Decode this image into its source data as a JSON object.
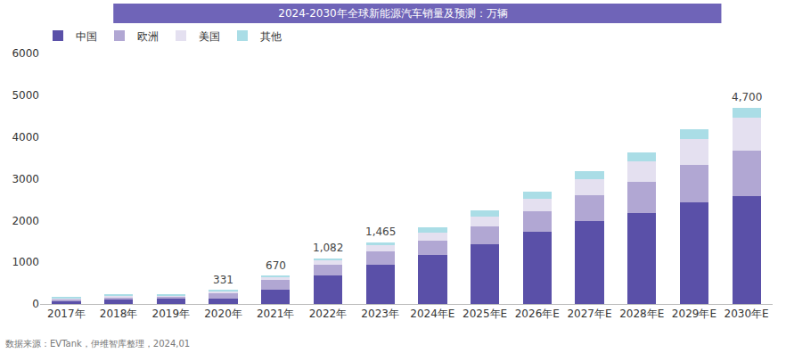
{
  "chart_data": {
    "type": "bar",
    "title": "2024-2030年全球新能源汽车销量及预测：万辆",
    "source": "数据来源：EVTank，伊维智库整理，2024,01",
    "categories": [
      "2017年",
      "2018年",
      "2019年",
      "2020年",
      "2021年",
      "2022年",
      "2023年",
      "2024年E",
      "2025年E",
      "2026年E",
      "2027年E",
      "2028年E",
      "2029年E",
      "2030年E"
    ],
    "series": [
      {
        "name": "中国",
        "color": "#5a50a8",
        "values": [
          78,
          125,
          121,
          137,
          352,
          689,
          950,
          1180,
          1430,
          1730,
          1980,
          2180,
          2440,
          2580
        ]
      },
      {
        "name": "欧洲",
        "color": "#b1a7d3",
        "values": [
          31,
          41,
          56,
          137,
          226,
          260,
          300,
          340,
          420,
          500,
          620,
          750,
          900,
          1100
        ]
      },
      {
        "name": "美国",
        "color": "#e4e0f0",
        "values": [
          20,
          36,
          33,
          33,
          67,
          99,
          150,
          190,
          240,
          300,
          380,
          480,
          620,
          780
        ]
      },
      {
        "name": "其他",
        "color": "#aadde6",
        "values": [
          33,
          12,
          11,
          24,
          25,
          34,
          65,
          120,
          150,
          170,
          200,
          210,
          220,
          240
        ]
      }
    ],
    "totals": [
      null,
      null,
      null,
      331,
      670,
      1082,
      1465,
      null,
      null,
      null,
      null,
      null,
      null,
      4700
    ],
    "total_labels": [
      null,
      null,
      null,
      "331",
      "670",
      "1,082",
      "1,465",
      null,
      null,
      null,
      null,
      null,
      null,
      "4,700"
    ],
    "stacked": true,
    "ylim": [
      0,
      6000
    ],
    "yticks": [
      0,
      1000,
      2000,
      3000,
      4000,
      5000,
      6000
    ],
    "grid": false,
    "legend": "top-left"
  }
}
